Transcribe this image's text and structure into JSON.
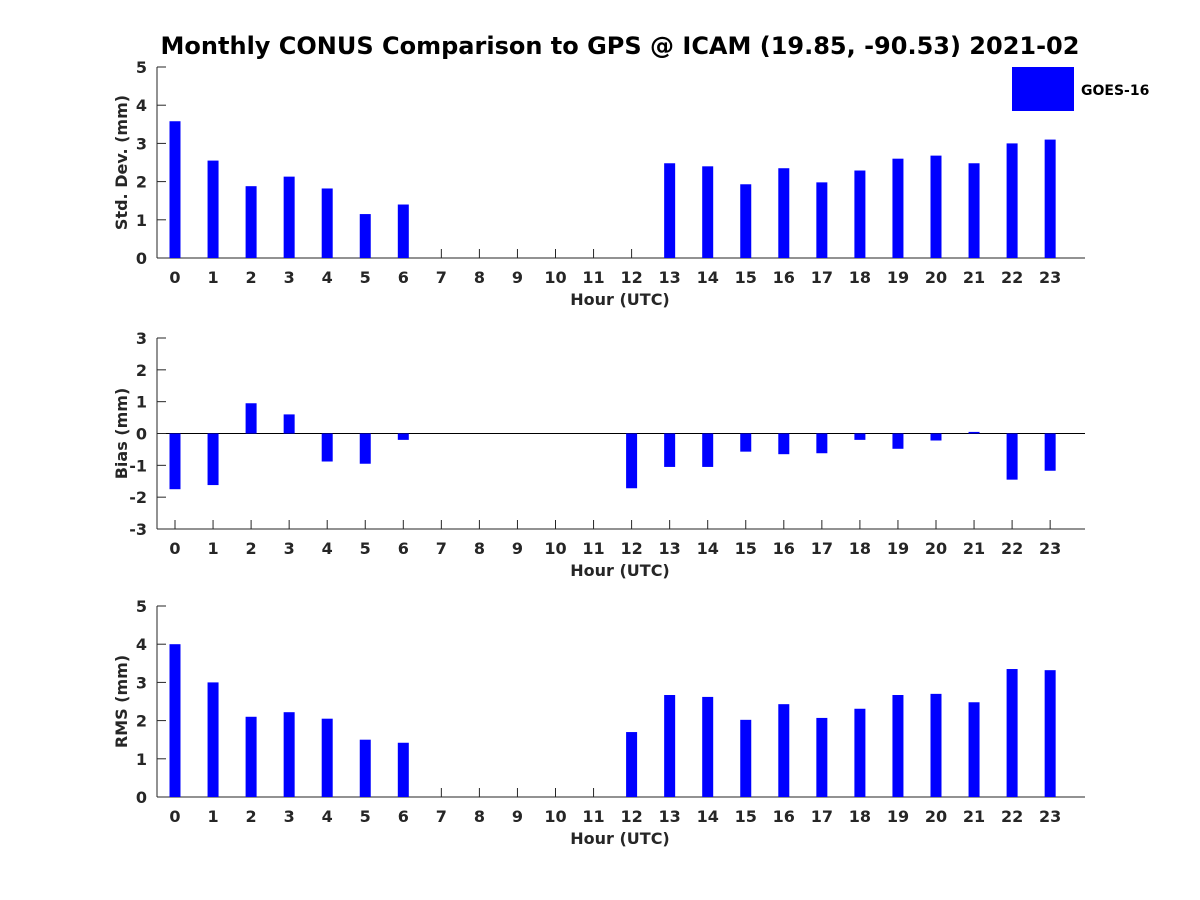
{
  "chart_data": {
    "title": "Monthly CONUS Comparison to GPS @ ICAM (19.85, -90.53) 2021-02",
    "type": "bar",
    "bar_color": "#0000ff",
    "axis_color": "#262626",
    "legend": {
      "label": "GOES-16",
      "placement": "top-right"
    },
    "categories": [
      "0",
      "1",
      "2",
      "3",
      "4",
      "5",
      "6",
      "7",
      "8",
      "9",
      "10",
      "11",
      "12",
      "13",
      "14",
      "15",
      "16",
      "17",
      "18",
      "19",
      "20",
      "21",
      "22",
      "23"
    ],
    "panels": [
      {
        "id": "std",
        "xlabel": "Hour (UTC)",
        "ylabel": "Std. Dev. (mm)",
        "ylim": [
          0,
          5
        ],
        "yticks": [
          0,
          1,
          2,
          3,
          4,
          5
        ],
        "series": [
          {
            "name": "GOES-16",
            "values": [
              3.58,
              2.55,
              1.88,
              2.13,
              1.82,
              1.15,
              1.4,
              null,
              null,
              null,
              null,
              null,
              null,
              2.48,
              2.4,
              1.93,
              2.35,
              1.98,
              2.29,
              2.6,
              2.68,
              2.48,
              3.0,
              3.1
            ]
          }
        ]
      },
      {
        "id": "bias",
        "xlabel": "Hour (UTC)",
        "ylabel": "Bias (mm)",
        "ylim": [
          -3,
          3
        ],
        "yticks": [
          -3,
          -2,
          -1,
          0,
          1,
          2,
          3
        ],
        "zero_line": true,
        "series": [
          {
            "name": "GOES-16",
            "values": [
              -1.75,
              -1.62,
              0.95,
              0.6,
              -0.88,
              -0.95,
              -0.2,
              null,
              null,
              null,
              null,
              null,
              -1.72,
              -1.05,
              -1.05,
              -0.57,
              -0.65,
              -0.62,
              -0.2,
              -0.48,
              -0.22,
              0.05,
              -1.45,
              -1.17
            ]
          }
        ]
      },
      {
        "id": "rms",
        "xlabel": "Hour (UTC)",
        "ylabel": "RMS (mm)",
        "ylim": [
          0,
          5
        ],
        "yticks": [
          0,
          1,
          2,
          3,
          4,
          5
        ],
        "series": [
          {
            "name": "GOES-16",
            "values": [
              4.0,
              3.0,
              2.1,
              2.22,
              2.05,
              1.5,
              1.42,
              null,
              null,
              null,
              null,
              null,
              1.7,
              2.67,
              2.62,
              2.02,
              2.43,
              2.07,
              2.31,
              2.67,
              2.7,
              2.48,
              3.35,
              3.32
            ]
          }
        ]
      }
    ]
  }
}
